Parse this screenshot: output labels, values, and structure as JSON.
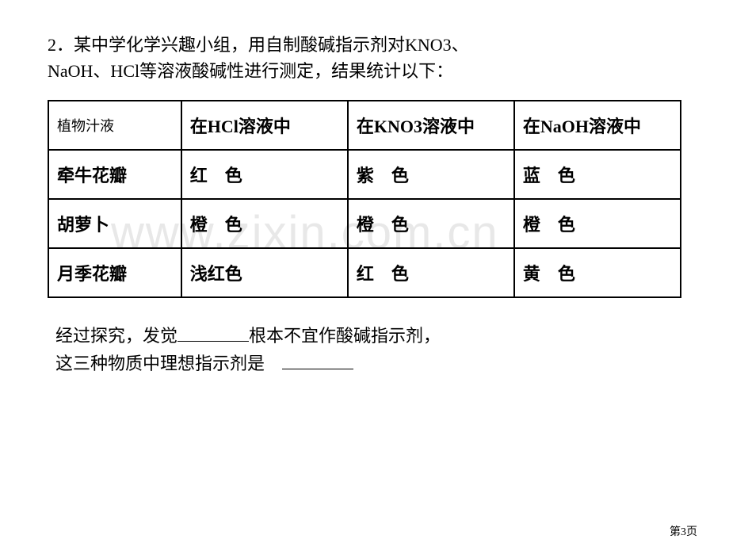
{
  "question": {
    "line1": "2．某中学化学兴趣小组，用自制酸碱指示剂对KNO3、",
    "line2": "NaOH、HCl等溶液酸碱性进行测定，结果统计以下："
  },
  "table": {
    "headers": {
      "plant": "植物汁液",
      "hcl": "在HCl溶液中",
      "kno3": "在KNO3溶液中",
      "naoh": "在NaOH溶液中"
    },
    "rows": [
      {
        "plant": "牵牛花瓣",
        "hcl": "红　色",
        "kno3": "紫　色",
        "naoh": "蓝　色"
      },
      {
        "plant": "胡萝卜",
        "hcl": "橙　色",
        "kno3": "橙　色",
        "naoh": "橙　色"
      },
      {
        "plant": "月季花瓣",
        "hcl": "浅红色",
        "kno3": "红　色",
        "naoh": "黄　色"
      }
    ]
  },
  "conclusion": {
    "line1_before": "经过探究，发觉",
    "line1_after": "根本不宜作酸碱指示剂，",
    "line2": "这三种物质中理想指示剂是　"
  },
  "watermark": "www.zixin.com.cn",
  "page_number": "第3页",
  "styles": {
    "background_color": "#ffffff",
    "text_color": "#000000",
    "border_color": "#000000",
    "watermark_color": "#e8e8e8",
    "body_fontsize": 22,
    "header_cell_fontsize": 18,
    "watermark_fontsize": 58,
    "page_number_fontsize": 14
  }
}
